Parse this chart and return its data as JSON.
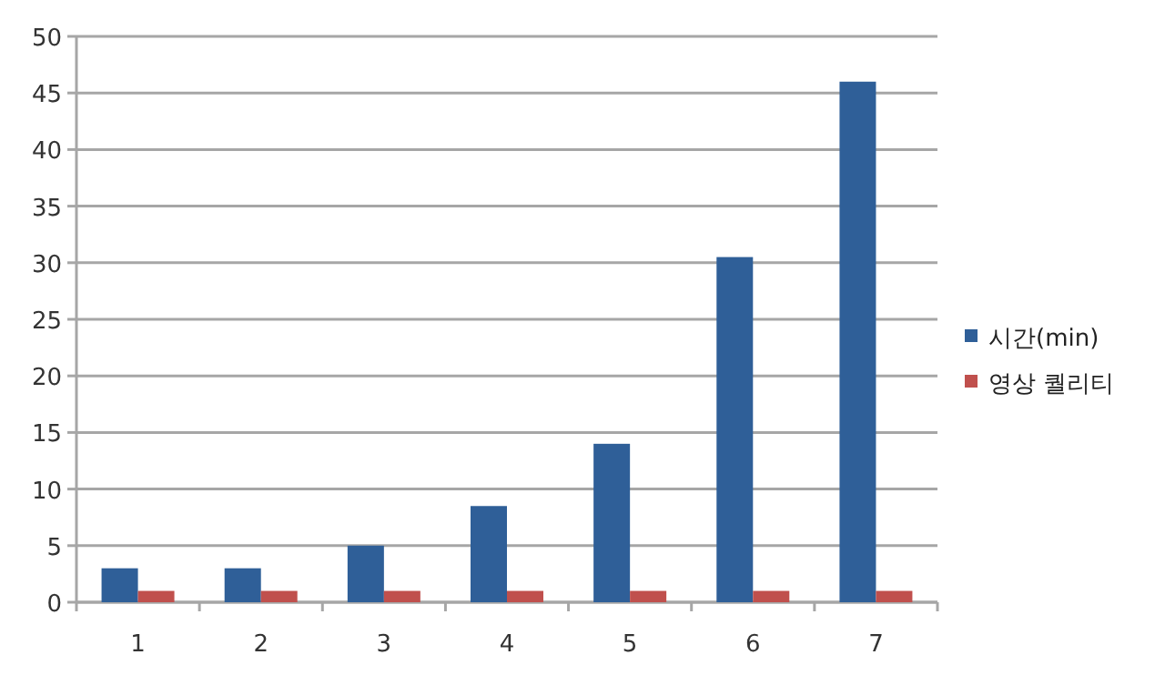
{
  "chart_data": {
    "type": "bar",
    "categories": [
      "1",
      "2",
      "3",
      "4",
      "5",
      "6",
      "7"
    ],
    "series": [
      {
        "name": "시간(min)",
        "color": "#2f5f98",
        "values": [
          3,
          3,
          5,
          8.5,
          14,
          30.5,
          46
        ]
      },
      {
        "name": "영상 퀄리티",
        "color": "#c0504d",
        "values": [
          1,
          1,
          1,
          1,
          1,
          1,
          1
        ]
      }
    ],
    "ylim": [
      0,
      50
    ],
    "yticks": [
      0,
      5,
      10,
      15,
      20,
      25,
      30,
      35,
      40,
      45,
      50
    ],
    "grid": "y",
    "legend": "right"
  }
}
